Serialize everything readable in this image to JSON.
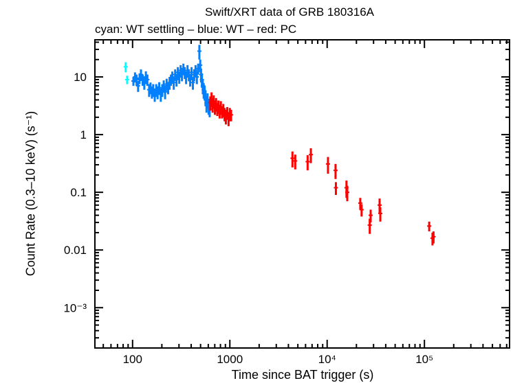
{
  "chart_data": {
    "type": "scatter",
    "title": "Swift/XRT data of GRB 180316A",
    "subtitle": "cyan: WT settling – blue: WT – red: PC",
    "xlabel": "Time since BAT trigger (s)",
    "ylabel": "Count Rate (0.3–10 keV) (s⁻¹)",
    "xscale": "log",
    "yscale": "log",
    "xlim": [
      41,
      750000
    ],
    "ylim": [
      0.0002,
      44
    ],
    "xticks": [
      {
        "v": 100,
        "label": "100"
      },
      {
        "v": 1000,
        "label": "1000"
      },
      {
        "v": 10000,
        "label": "10⁴"
      },
      {
        "v": 100000,
        "label": "10⁵"
      }
    ],
    "yticks": [
      {
        "v": 10,
        "label": "10"
      },
      {
        "v": 1,
        "label": "1"
      },
      {
        "v": 0.1,
        "label": "0.1"
      },
      {
        "v": 0.01,
        "label": "0.01"
      },
      {
        "v": 0.001,
        "label": "10⁻³"
      }
    ],
    "grid": false,
    "series": [
      {
        "color": "#00ffff",
        "points": [
          [
            85,
            15,
            3
          ],
          [
            88,
            9,
            1.5
          ]
        ]
      },
      {
        "color": "#0080ff",
        "points": [
          [
            102,
            8.5,
            1.5
          ],
          [
            106,
            10,
            2
          ],
          [
            110,
            9,
            2
          ],
          [
            114,
            7,
            1.5
          ],
          [
            118,
            9.5,
            2
          ],
          [
            122,
            11,
            2.5
          ],
          [
            127,
            9,
            2
          ],
          [
            132,
            8,
            2
          ],
          [
            137,
            10,
            2.5
          ],
          [
            142,
            9,
            2
          ],
          [
            148,
            6,
            1.5
          ],
          [
            153,
            6.5,
            1.5
          ],
          [
            158,
            5.5,
            1.3
          ],
          [
            163,
            6,
            1.5
          ],
          [
            169,
            5,
            1.3
          ],
          [
            175,
            6,
            1.5
          ],
          [
            181,
            5.5,
            1.4
          ],
          [
            188,
            6.5,
            1.6
          ],
          [
            195,
            5,
            1.3
          ],
          [
            202,
            6,
            1.5
          ],
          [
            209,
            7,
            1.7
          ],
          [
            216,
            5.5,
            1.4
          ],
          [
            224,
            7.5,
            1.8
          ],
          [
            232,
            6.5,
            1.5
          ],
          [
            240,
            8,
            2
          ],
          [
            248,
            9,
            2
          ],
          [
            256,
            10,
            2.4
          ],
          [
            265,
            8,
            2
          ],
          [
            274,
            11,
            2.5
          ],
          [
            283,
            9,
            2.2
          ],
          [
            292,
            12,
            2.8
          ],
          [
            302,
            10,
            2.4
          ],
          [
            312,
            13,
            3
          ],
          [
            322,
            11,
            2.6
          ],
          [
            333,
            14,
            3
          ],
          [
            344,
            12,
            2.8
          ],
          [
            355,
            10,
            2.5
          ],
          [
            367,
            13,
            3
          ],
          [
            379,
            11,
            2.6
          ],
          [
            391,
            9,
            2.2
          ],
          [
            404,
            12,
            2.8
          ],
          [
            417,
            8,
            2
          ],
          [
            430,
            11,
            2.6
          ],
          [
            444,
            13,
            3
          ],
          [
            458,
            10,
            2.5
          ],
          [
            472,
            14,
            3
          ],
          [
            486,
            28,
            8
          ],
          [
            496,
            16,
            4
          ],
          [
            506,
            11,
            3
          ],
          [
            516,
            9,
            2.5
          ],
          [
            527,
            7,
            2
          ],
          [
            538,
            6,
            1.8
          ],
          [
            550,
            5.5,
            1.6
          ],
          [
            562,
            4.5,
            1.4
          ],
          [
            575,
            3.5,
            1.1
          ],
          [
            590,
            4,
            1.2
          ],
          [
            605,
            3.2,
            1
          ],
          [
            620,
            2.8,
            0.8
          ]
        ]
      },
      {
        "color": "#ff0000",
        "points": [
          [
            630,
            3.6,
            1
          ],
          [
            648,
            4.2,
            1.2
          ],
          [
            665,
            3.3,
            0.9
          ],
          [
            683,
            3.8,
            1
          ],
          [
            702,
            3,
            0.8
          ],
          [
            722,
            3.4,
            0.9
          ],
          [
            742,
            2.8,
            0.7
          ],
          [
            763,
            3.1,
            0.8
          ],
          [
            785,
            2.6,
            0.7
          ],
          [
            808,
            3,
            0.8
          ],
          [
            832,
            2.5,
            0.6
          ],
          [
            857,
            2.7,
            0.7
          ],
          [
            883,
            2.3,
            0.6
          ],
          [
            910,
            2.1,
            0.6
          ],
          [
            940,
            2.4,
            0.6
          ],
          [
            970,
            1.9,
            0.5
          ],
          [
            1000,
            2.3,
            0.6
          ],
          [
            1030,
            2.2,
            0.5
          ],
          [
            4400,
            0.39,
            0.12
          ],
          [
            4700,
            0.35,
            0.1
          ],
          [
            6300,
            0.34,
            0.1
          ],
          [
            6800,
            0.45,
            0.13
          ],
          [
            10200,
            0.31,
            0.1
          ],
          [
            12200,
            0.24,
            0.07
          ],
          [
            12300,
            0.12,
            0.03
          ],
          [
            15800,
            0.12,
            0.04
          ],
          [
            16100,
            0.1,
            0.03
          ],
          [
            21900,
            0.065,
            0.015
          ],
          [
            22600,
            0.05,
            0.012
          ],
          [
            27400,
            0.027,
            0.008
          ],
          [
            28000,
            0.04,
            0.01
          ],
          [
            34600,
            0.06,
            0.018
          ],
          [
            35200,
            0.043,
            0.012
          ],
          [
            112000,
            0.026,
            0.005
          ],
          [
            121000,
            0.016,
            0.004
          ],
          [
            124000,
            0.017,
            0.004
          ]
        ]
      }
    ]
  }
}
